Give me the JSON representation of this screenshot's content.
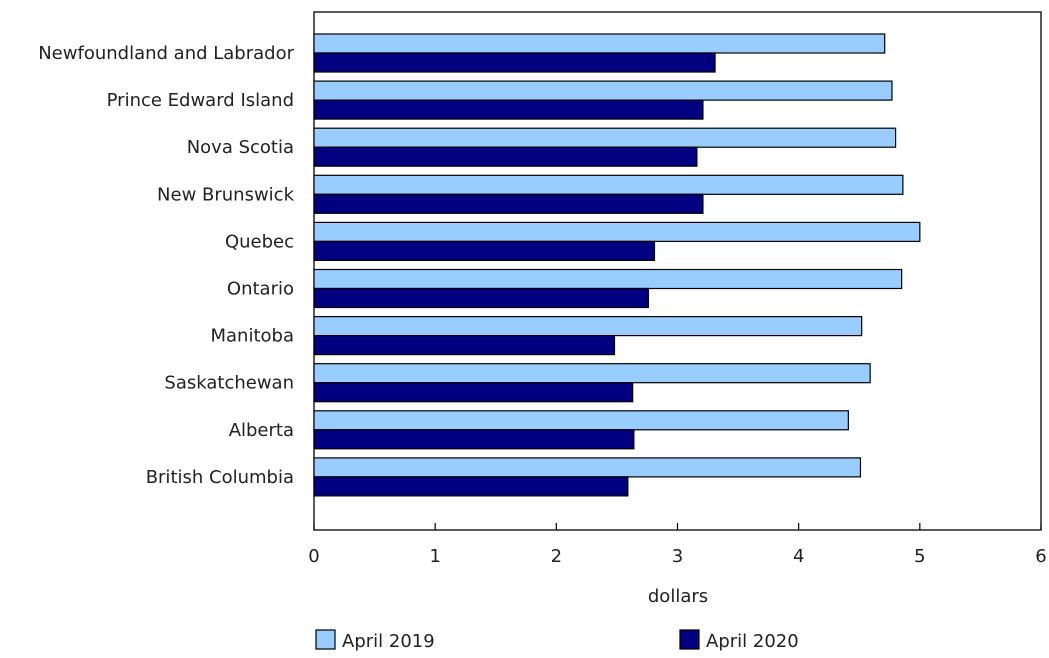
{
  "chart_data": {
    "type": "bar",
    "orientation": "horizontal",
    "categories": [
      "Newfoundland and Labrador",
      "Prince Edward Island",
      "Nova Scotia",
      "New Brunswick",
      "Quebec",
      "Ontario",
      "Manitoba",
      "Saskatchewan",
      "Alberta",
      "British Columbia"
    ],
    "series": [
      {
        "name": "April 2019",
        "color": "#99ccff",
        "values": [
          4.71,
          4.77,
          4.8,
          4.86,
          5.0,
          4.85,
          4.52,
          4.59,
          4.41,
          4.51
        ]
      },
      {
        "name": "April 2020",
        "color": "#000080",
        "values": [
          3.31,
          3.21,
          3.16,
          3.21,
          2.81,
          2.76,
          2.48,
          2.63,
          2.64,
          2.59
        ]
      }
    ],
    "title": "",
    "xlabel": "dollars",
    "ylabel": "",
    "xlim": [
      0,
      6
    ],
    "xticks": [
      "0",
      "1",
      "2",
      "3",
      "4",
      "5",
      "6"
    ],
    "grid": false,
    "legend_position": "bottom"
  }
}
